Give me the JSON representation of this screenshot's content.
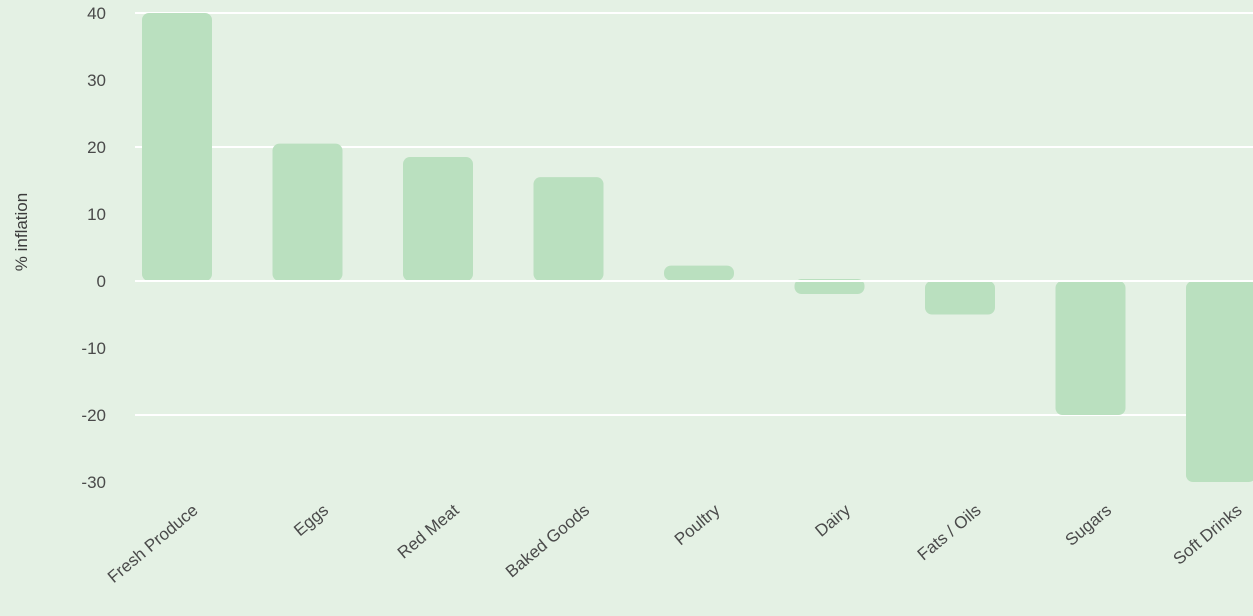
{
  "chart_data": {
    "type": "bar",
    "title": "",
    "xlabel": "",
    "ylabel": "% inflation",
    "categories": [
      "Fresh Produce",
      "Eggs",
      "Red Meat",
      "Baked Goods",
      "Poultry",
      "Dairy",
      "Fats / Oils",
      "Sugars",
      "Soft Drinks"
    ],
    "series": [
      {
        "values": [
          40,
          20.5,
          18.5,
          15.5,
          2,
          -2,
          -5,
          -20,
          -30
        ]
      }
    ],
    "ylim": [
      -33,
      40
    ],
    "yticks": [
      40,
      30,
      20,
      10,
      0,
      -10,
      -20,
      -30
    ],
    "grid": true,
    "legend": "none",
    "colors": {
      "background": "#e4f1e4",
      "bar": "#bae0bf",
      "grid": "#ffffff",
      "text": "#4a4a4a"
    }
  }
}
